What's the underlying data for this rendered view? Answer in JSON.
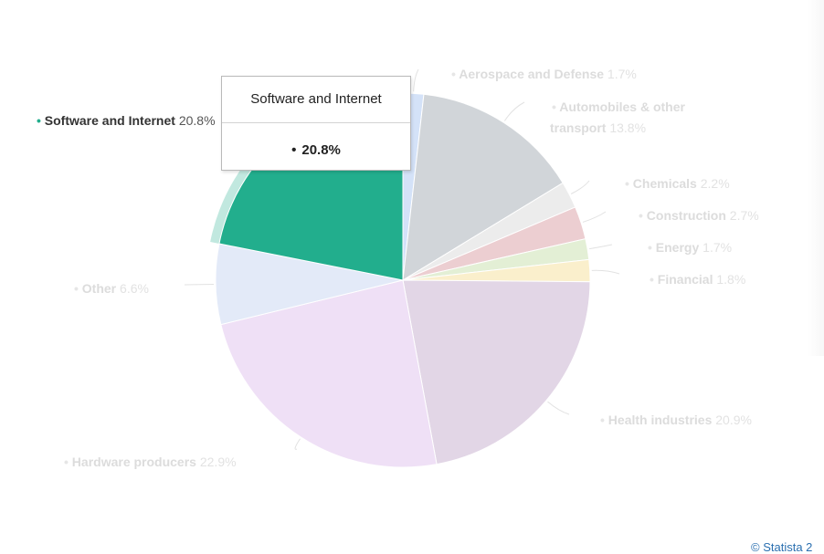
{
  "chart_data": {
    "type": "pie",
    "highlighted": "Software and Internet",
    "slices": [
      {
        "label": "Aerospace and Defense",
        "value": 1.7,
        "value_label": "1.7%",
        "color": "#d4e2f8"
      },
      {
        "label": "Automobiles & other transport",
        "value": 13.8,
        "value_label": "13.8%",
        "color": "#d1d5d9"
      },
      {
        "label": "Chemicals",
        "value": 2.2,
        "value_label": "2.2%",
        "color": "#ececec"
      },
      {
        "label": "Construction",
        "value": 2.7,
        "value_label": "2.7%",
        "color": "#ecced1"
      },
      {
        "label": "Energy",
        "value": 1.7,
        "value_label": "1.7%",
        "color": "#e3efd5"
      },
      {
        "label": "Financial",
        "value": 1.8,
        "value_label": "1.8%",
        "color": "#faefcc"
      },
      {
        "label": "Health industries",
        "value": 20.9,
        "value_label": "20.9%",
        "color": "#e2d6e6"
      },
      {
        "label": "Hardware producers",
        "value": 22.9,
        "value_label": "22.9%",
        "color": "#efe0f6"
      },
      {
        "label": "Other",
        "value": 6.6,
        "value_label": "6.6%",
        "color": "#e3eaf8"
      },
      {
        "label": "Software and Internet",
        "value": 20.8,
        "value_label": "20.8%",
        "color": "#22ae8d"
      }
    ]
  },
  "tooltip": {
    "title": "Software and Internet",
    "bullet": "•",
    "value": "20.8%"
  },
  "credit": "© Statista 2"
}
